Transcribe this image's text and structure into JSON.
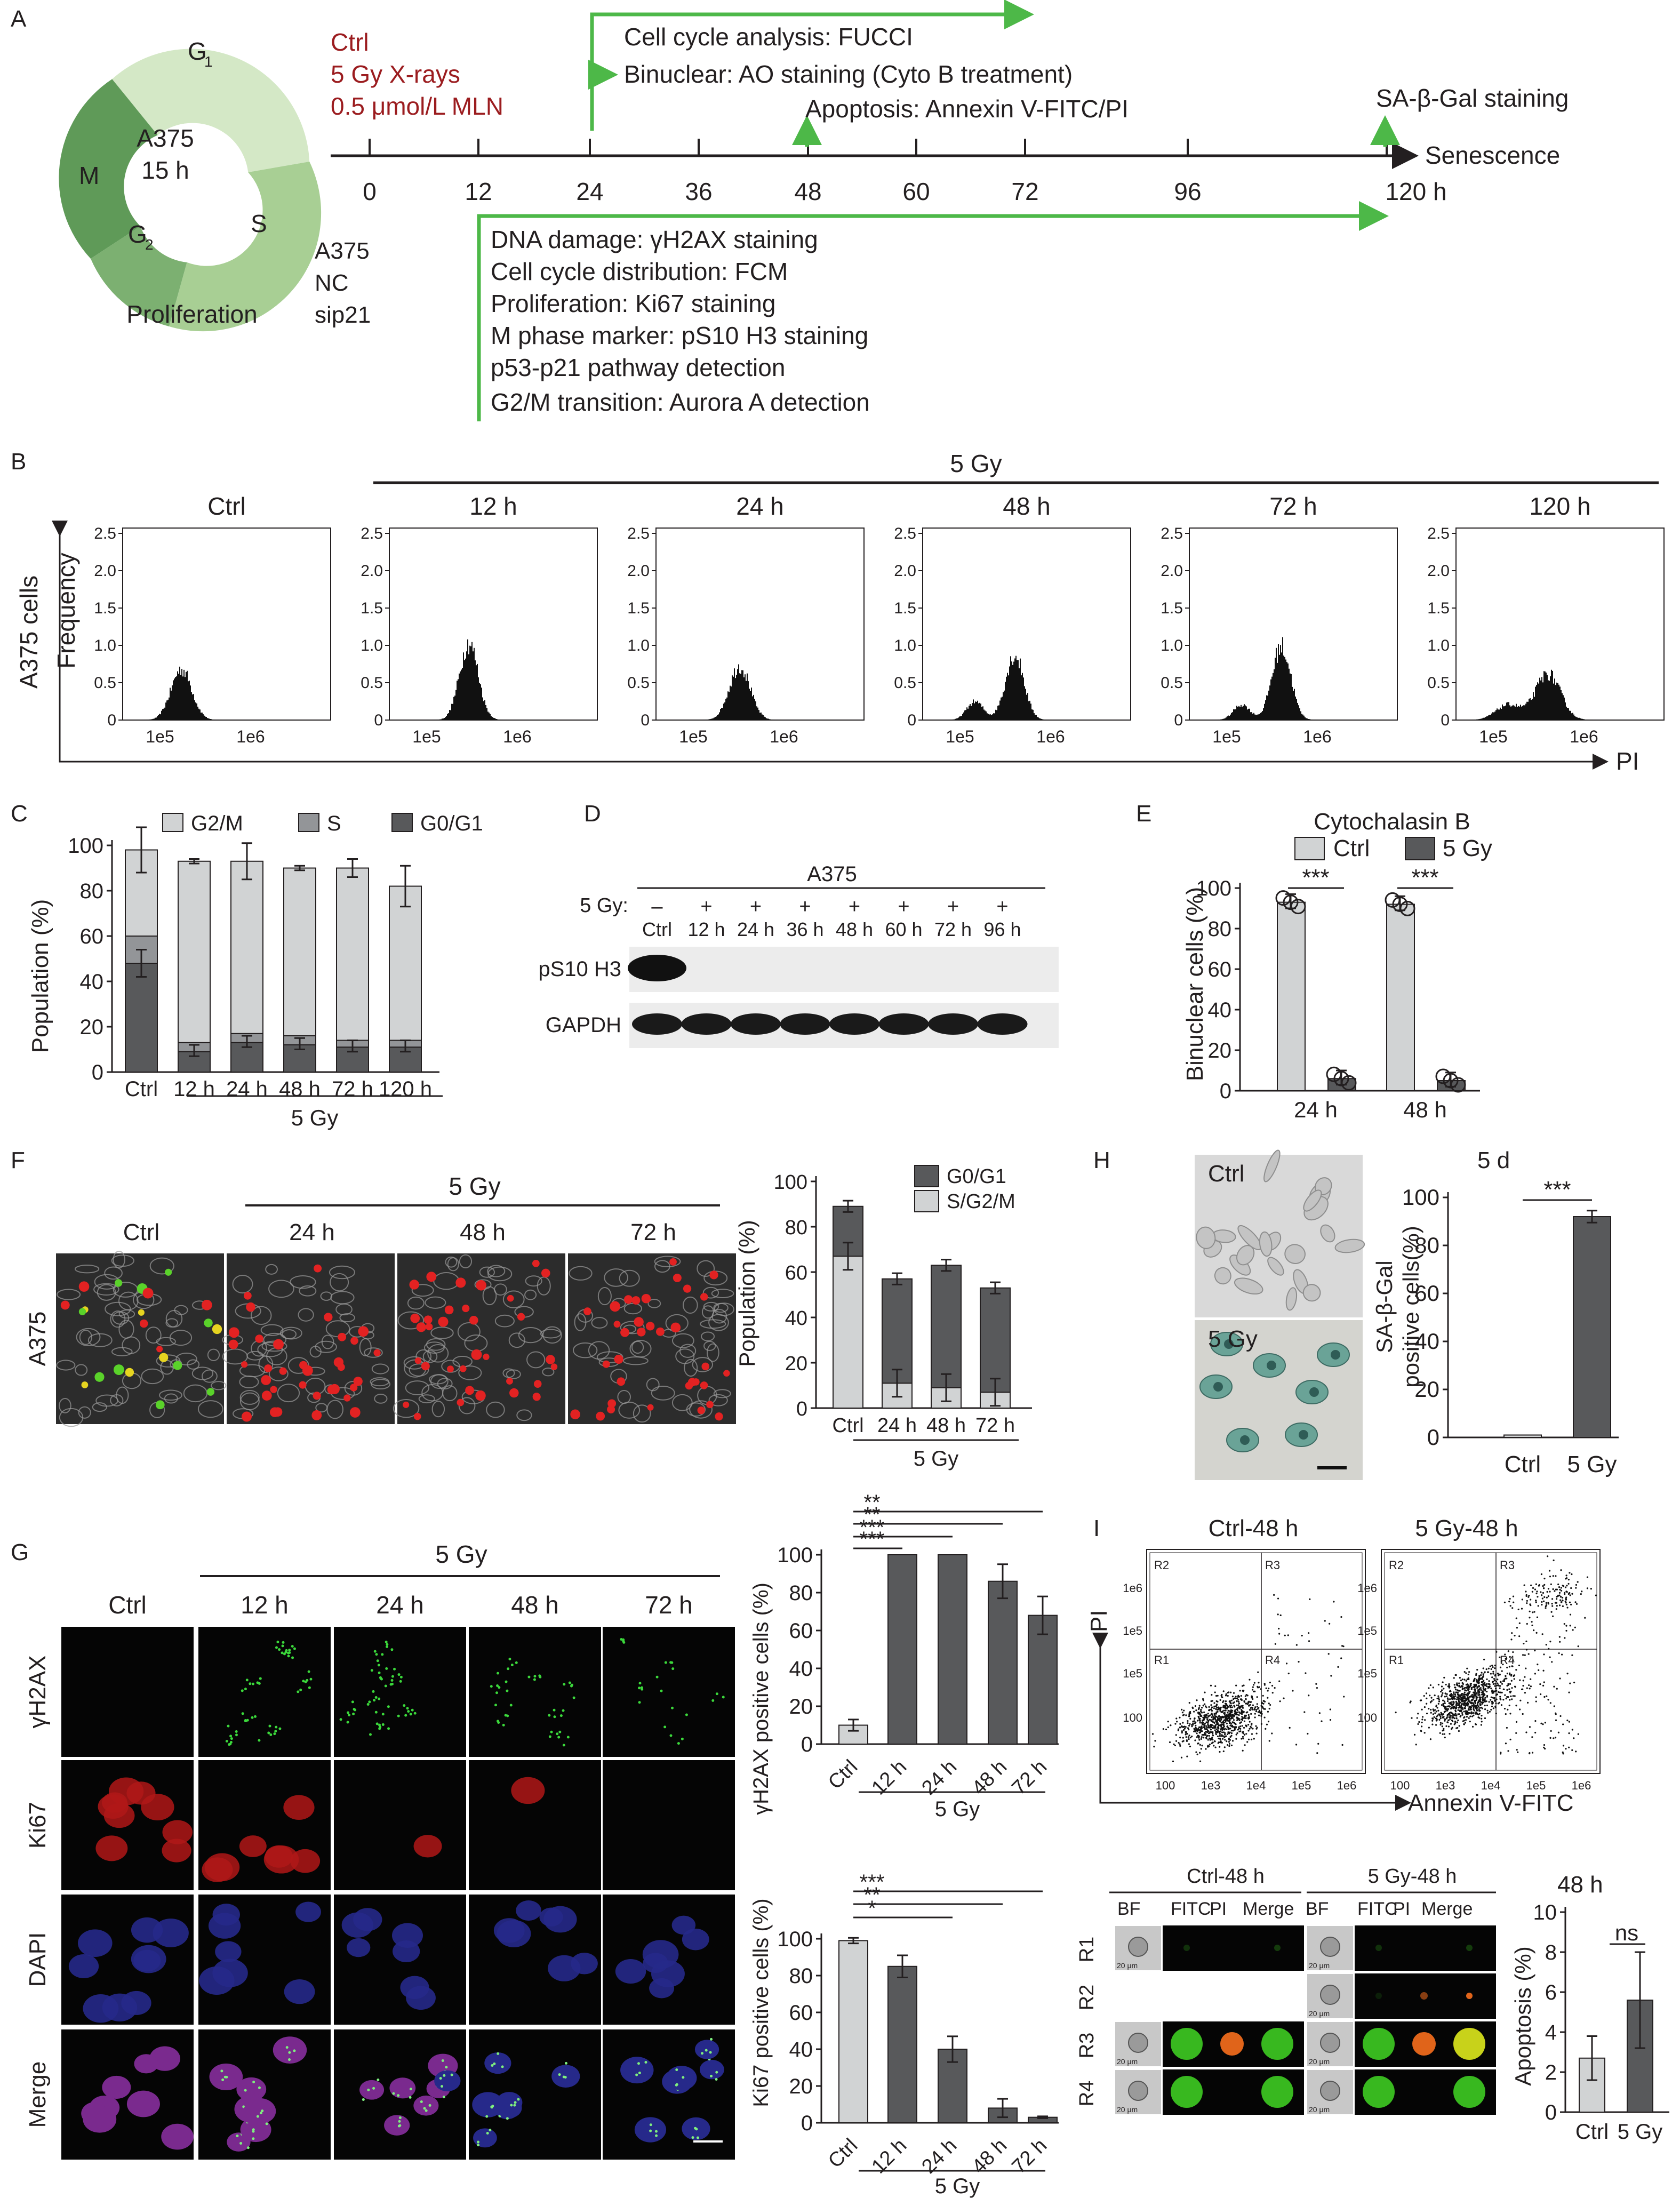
{
  "panels": {
    "A": "A",
    "B": "B",
    "C": "C",
    "D": "D",
    "E": "E",
    "F": "F",
    "G": "G",
    "H": "H",
    "I": "I"
  },
  "panelA": {
    "cycle_center": [
      "A375",
      "15 h"
    ],
    "phases": {
      "g1": "G",
      "g1_sub": "1",
      "s": "S",
      "g2": "G",
      "g2_sub": "2",
      "m": "M"
    },
    "proliferation": "Proliferation",
    "treatments": [
      "Ctrl",
      "5 Gy X-rays",
      "0.5 μmol/L MLN"
    ],
    "cells": [
      "A375",
      "NC",
      "sip21"
    ],
    "ticks": [
      "0",
      "12",
      "24",
      "36",
      "48",
      "60",
      "72",
      "96",
      "120 h"
    ],
    "senescence": "Senescence",
    "top_assays": [
      "Cell cycle analysis: FUCCI",
      "Binuclear: AO staining (Cyto B treatment)"
    ],
    "apoptosis": "Apoptosis: Annexin V-FITC/PI",
    "sa_gal": "SA-β-Gal staining",
    "bottom_assays": [
      "DNA damage: γH2AX staining",
      "Cell cycle distribution: FCM",
      "Proliferation: Ki67 staining",
      "M phase marker: pS10 H3 staining",
      "p53-p21 pathway detection",
      "G2/M transition: Aurora A detection"
    ],
    "colors": {
      "arrow": "#4db848",
      "red_text": "#9b1c1f",
      "ring_light": "#d4e8c6",
      "ring_mid": "#a8cf94",
      "ring_dark": "#5f9a58"
    }
  },
  "panelB": {
    "group_label": "5 Gy",
    "conditions": [
      "Ctrl",
      "12 h",
      "24 h",
      "48 h",
      "72 h",
      "120 h"
    ],
    "ylabel": "Frequency",
    "row_label": "A375 cells",
    "xlabel": "PI",
    "yticks": [
      "2.5",
      "2.0",
      "1.5",
      "1.0",
      "0.5",
      "0"
    ],
    "xticks": [
      "1e5",
      "1e6"
    ]
  },
  "chart_data": [
    {
      "type": "bar",
      "panel": "C",
      "categories": [
        "Ctrl",
        "12 h",
        "24 h",
        "48 h",
        "72 h",
        "120 h"
      ],
      "series": [
        {
          "name": "G0/G1",
          "values": [
            48,
            9,
            13,
            12,
            11,
            11
          ]
        },
        {
          "name": "S",
          "values": [
            12,
            4,
            4,
            4,
            3,
            3
          ]
        },
        {
          "name": "G2/M",
          "values": [
            38,
            80,
            76,
            74,
            76,
            68
          ]
        }
      ],
      "ylabel": "Population (%)",
      "group_label": "5 Gy",
      "ylim": [
        0,
        100
      ],
      "yticks": [
        "0",
        "20",
        "40",
        "60",
        "80",
        "100"
      ],
      "colors": {
        "G0/G1": "#58595b",
        "S": "#939598",
        "G2/M": "#d1d3d4"
      }
    },
    {
      "type": "bar",
      "panel": "E",
      "title": "Cytochalasin B",
      "categories": [
        "24 h",
        "48 h"
      ],
      "series": [
        {
          "name": "Ctrl",
          "values": [
            93,
            92
          ]
        },
        {
          "name": "5 Gy",
          "values": [
            6,
            5
          ]
        }
      ],
      "ylabel": "Binuclear cells (%)",
      "ylim": [
        0,
        100
      ],
      "yticks": [
        "0",
        "20",
        "40",
        "60",
        "80",
        "100"
      ],
      "significance": [
        "***",
        "***"
      ]
    },
    {
      "type": "bar",
      "panel": "F",
      "categories": [
        "Ctrl",
        "24 h",
        "48 h",
        "72 h"
      ],
      "series": [
        {
          "name": "S/G2/M",
          "values": [
            67,
            11,
            9,
            7
          ]
        },
        {
          "name": "G0/G1",
          "values": [
            22,
            46,
            54,
            46
          ]
        }
      ],
      "ylabel": "Population (%)",
      "group_label": "5 Gy",
      "ylim": [
        0,
        100
      ],
      "yticks": [
        "0",
        "20",
        "40",
        "60",
        "80",
        "100"
      ]
    },
    {
      "type": "bar",
      "panel": "G-top",
      "categories": [
        "Ctrl",
        "12 h",
        "24 h",
        "48 h",
        "72 h"
      ],
      "values": [
        10,
        100,
        100,
        86,
        68
      ],
      "ylabel": "γH2AX positive cells (%)",
      "group_label": "5 Gy",
      "ylim": [
        0,
        100
      ],
      "yticks": [
        "0",
        "20",
        "40",
        "60",
        "80",
        "100"
      ],
      "significance": [
        "***",
        "***",
        "**",
        "**"
      ]
    },
    {
      "type": "bar",
      "panel": "G-bottom",
      "categories": [
        "Ctrl",
        "12 h",
        "24 h",
        "48 h",
        "72 h"
      ],
      "values": [
        99,
        85,
        40,
        8,
        3
      ],
      "ylabel": "Ki67 positive cells (%)",
      "group_label": "5 Gy",
      "ylim": [
        0,
        100
      ],
      "yticks": [
        "0",
        "20",
        "40",
        "60",
        "80",
        "100"
      ],
      "significance": [
        "*",
        "**",
        "***"
      ]
    },
    {
      "type": "bar",
      "panel": "H",
      "title": "5 d",
      "categories": [
        "Ctrl",
        "5 Gy"
      ],
      "values": [
        1,
        92
      ],
      "ylabel": "SA-β-Gal positive cells(%)",
      "ylim": [
        0,
        100
      ],
      "yticks": [
        "0",
        "20",
        "40",
        "60",
        "80",
        "100"
      ],
      "significance": [
        "***"
      ]
    },
    {
      "type": "bar",
      "panel": "I",
      "title": "48 h",
      "categories": [
        "Ctrl",
        "5 Gy"
      ],
      "values": [
        2.7,
        5.6
      ],
      "ylabel": "Apoptosis (%)",
      "ylim": [
        0,
        10
      ],
      "yticks": [
        "0",
        "2",
        "4",
        "6",
        "8",
        "10"
      ],
      "significance": [
        "ns"
      ]
    }
  ],
  "panelC": {
    "legend": [
      "G2/M",
      "S",
      "G0/G1"
    ]
  },
  "panelD": {
    "title": "A375",
    "gy_label": "5 Gy:",
    "signs": [
      "–",
      "+",
      "+",
      "+",
      "+",
      "+",
      "+",
      "+"
    ],
    "lanes": [
      "Ctrl",
      "12 h",
      "24 h",
      "36 h",
      "48 h",
      "60 h",
      "72 h",
      "96 h"
    ],
    "rows": [
      "pS10 H3",
      "GAPDH"
    ]
  },
  "panelE": {
    "legend": [
      "Ctrl",
      "5 Gy"
    ]
  },
  "panelF": {
    "group_label": "5 Gy",
    "columns": [
      "Ctrl",
      "24 h",
      "48 h",
      "72 h"
    ],
    "row_label": "A375",
    "legend": [
      "G0/G1",
      "S/G2/M"
    ]
  },
  "panelG": {
    "group_label": "5 Gy",
    "columns": [
      "Ctrl",
      "12 h",
      "24 h",
      "48 h",
      "72 h"
    ],
    "rows": [
      "γH2AX",
      "Ki67",
      "DAPI",
      "Merge"
    ]
  },
  "panelH": {
    "img_labels": [
      "Ctrl",
      "5 Gy"
    ],
    "ylabel_lines": [
      "SA-β-Gal",
      "positive cells(%)"
    ]
  },
  "panelI": {
    "flow_titles": [
      "Ctrl-48 h",
      "5 Gy-48 h"
    ],
    "regions": [
      "R2",
      "R3",
      "R1",
      "R4"
    ],
    "yticks": [
      "1e6",
      "1e5",
      "1e5",
      "100"
    ],
    "xticks": [
      "100",
      "1e3",
      "1e4",
      "1e5",
      "1e6"
    ],
    "ylabel": "PI",
    "xlabel": "Annexin V-FITC",
    "imaging_titles": [
      "Ctrl-48 h",
      "5 Gy-48 h"
    ],
    "imaging_cols": [
      "BF",
      "FITC",
      "PI",
      "Merge"
    ],
    "imaging_rows": [
      "R1",
      "R2",
      "R3",
      "R4"
    ],
    "scale": "20 μm"
  }
}
